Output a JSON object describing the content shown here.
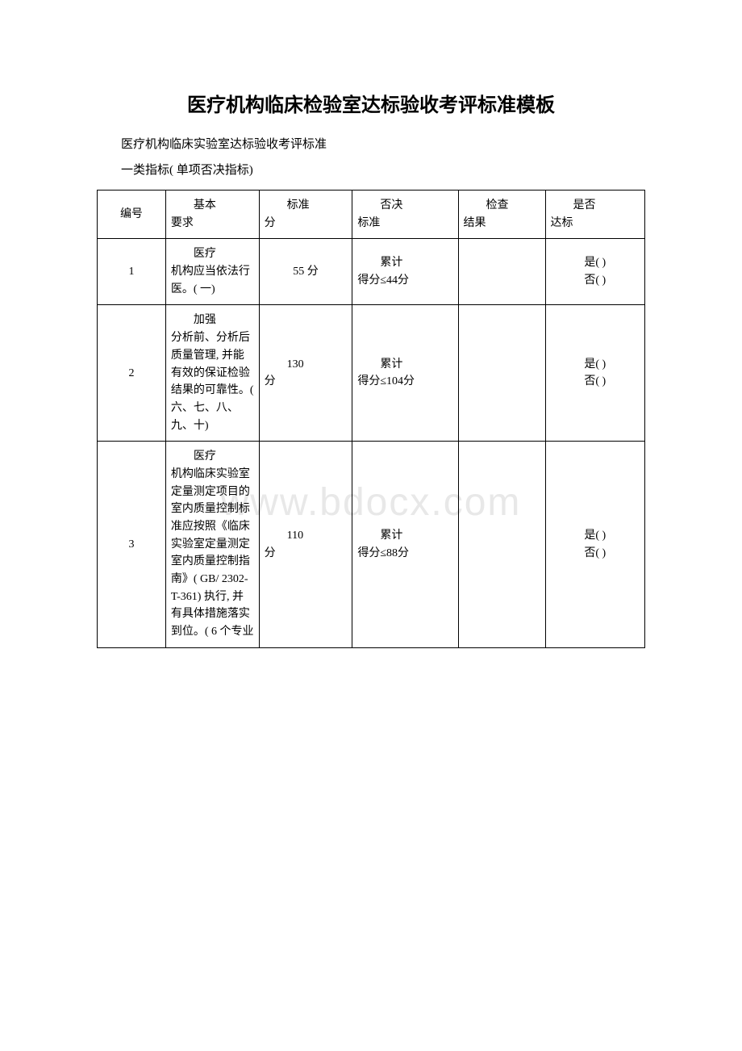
{
  "document": {
    "title": "医疗机构临床检验室达标验收考评标准模板",
    "subtitle1": "医疗机构临床实验室达标验收考评标准",
    "subtitle2": "一类指标( 单项否决指标)",
    "watermark": "www.bdocx.com"
  },
  "table": {
    "headers": {
      "num": "编号",
      "req_label": "基本",
      "req_suffix": "要求",
      "score_label": "标准",
      "score_suffix": "分",
      "veto_label": "否决",
      "veto_suffix": "标准",
      "result_label": "检查",
      "result_suffix": "结果",
      "pass_label": "是否",
      "pass_suffix": "达标"
    },
    "rows": [
      {
        "num": "1",
        "req_first": "医疗",
        "req_rest": "机构应当依法行医。( 一)",
        "score": "55 分",
        "veto_first": "累计",
        "veto_rest": "得分≤44分",
        "result": "",
        "pass_yes": "是( )",
        "pass_no": "否( )"
      },
      {
        "num": "2",
        "req_first": "加强",
        "req_rest": "分析前、分析后质量管理, 并能有效的保证检验结果的可靠性。( 六、七、八、九、十)",
        "score_first": "130",
        "score_rest": "分",
        "veto_first": "累计",
        "veto_rest": "得分≤104分",
        "result": "",
        "pass_yes": "是( )",
        "pass_no": "否( )"
      },
      {
        "num": "3",
        "req_first": "医疗",
        "req_rest": "机构临床实验室定量测定项目的室内质量控制标准应按照《临床实验室定量测定室内质量控制指南》( GB/ 2302-T-361) 执行, 并有具体措施落实到位。( 6 个专业",
        "score_first": "110",
        "score_rest": "分",
        "veto_first": "累计",
        "veto_rest": "得分≤88分",
        "result": "",
        "pass_yes": "是( )",
        "pass_no": "否( )"
      }
    ]
  },
  "styles": {
    "text_color": "#000000",
    "background_color": "#ffffff",
    "border_color": "#000000",
    "watermark_color": "#e8e8e8",
    "title_fontsize": 24,
    "body_fontsize": 14,
    "intro_fontsize": 15
  }
}
